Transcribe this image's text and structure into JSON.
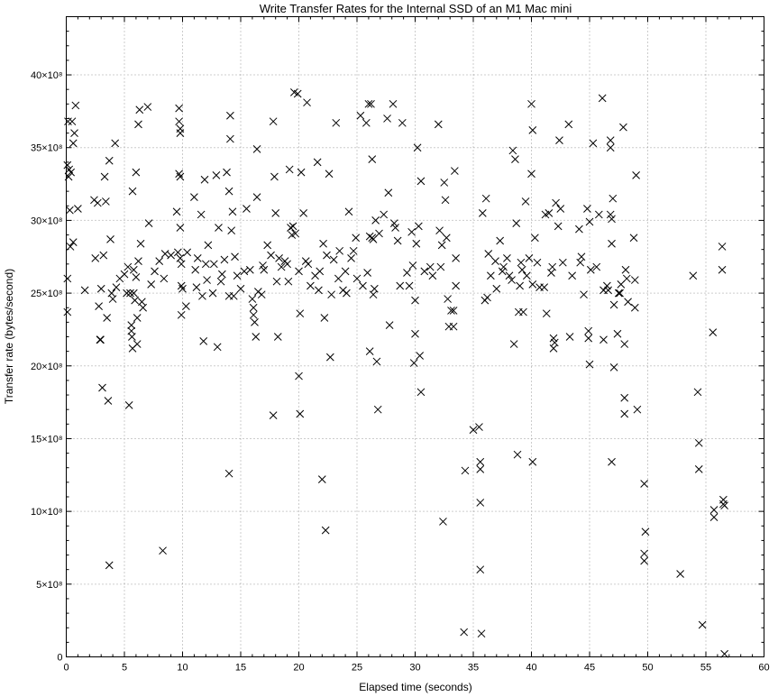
{
  "chart_data": {
    "type": "scatter",
    "title": "Write Transfer Rates for the Internal SSD of an M1 Mac mini",
    "xlabel": "Elapsed time (seconds)",
    "ylabel": "Transfer rate (bytes/second)",
    "xlim": [
      0,
      60
    ],
    "ylim": [
      0,
      4400000000.0
    ],
    "xticks": [
      0,
      5,
      10,
      15,
      20,
      25,
      30,
      35,
      40,
      45,
      50,
      55,
      60
    ],
    "yticks": [
      0,
      500000000,
      1000000000,
      1500000000,
      2000000000,
      2500000000,
      3000000000,
      3500000000,
      4000000000
    ],
    "ytick_labels": [
      "0",
      "5×10⁸",
      "10×10⁸",
      "15×10⁸",
      "20×10⁸",
      "25×10⁸",
      "30×10⁸",
      "35×10⁸",
      "40×10⁸"
    ],
    "grid": true,
    "marker": "x",
    "legend": "none",
    "points": [
      [
        0.1,
        3380000000.0
      ],
      [
        0.15,
        3680000000.0
      ],
      [
        0.2,
        3300000000.0
      ],
      [
        0.25,
        3350000000.0
      ],
      [
        0.3,
        3070000000.0
      ],
      [
        0.35,
        2820000000.0
      ],
      [
        0.1,
        2600000000.0
      ],
      [
        0.1,
        2370000000.0
      ],
      [
        0.4,
        3330000000.0
      ],
      [
        0.5,
        3680000000.0
      ],
      [
        0.6,
        3530000000.0
      ],
      [
        0.7,
        3600000000.0
      ],
      [
        0.8,
        3790000000.0
      ],
      [
        0.6,
        2850000000.0
      ],
      [
        1.0,
        3080000000.0
      ],
      [
        1.6,
        2520000000.0
      ],
      [
        2.4,
        3140000000.0
      ],
      [
        2.5,
        2740000000.0
      ],
      [
        2.7,
        3120000000.0
      ],
      [
        2.8,
        2410000000.0
      ],
      [
        2.9,
        2180000000.0
      ],
      [
        2.95,
        2180000000.0
      ],
      [
        3.0,
        2530000000.0
      ],
      [
        3.1,
        1850000000.0
      ],
      [
        3.2,
        2760000000.0
      ],
      [
        3.3,
        3300000000.0
      ],
      [
        3.4,
        3130000000.0
      ],
      [
        3.5,
        2330000000.0
      ],
      [
        3.6,
        1760000000.0
      ],
      [
        3.7,
        630000000.0
      ],
      [
        3.7,
        3410000000.0
      ],
      [
        3.8,
        2870000000.0
      ],
      [
        3.9,
        2500000000.0
      ],
      [
        4.0,
        2460000000.0
      ],
      [
        4.2,
        3530000000.0
      ],
      [
        4.3,
        2540000000.0
      ],
      [
        4.6,
        2600000000.0
      ],
      [
        5.0,
        2630000000.0
      ],
      [
        5.2,
        2500000000.0
      ],
      [
        5.3,
        2680000000.0
      ],
      [
        5.4,
        1730000000.0
      ],
      [
        5.5,
        2500000000.0
      ],
      [
        5.6,
        2280000000.0
      ],
      [
        5.6,
        2240000000.0
      ],
      [
        5.65,
        2200000000.0
      ],
      [
        5.7,
        2120000000.0
      ],
      [
        5.7,
        3200000000.0
      ],
      [
        5.8,
        2660000000.0
      ],
      [
        5.8,
        2500000000.0
      ],
      [
        5.9,
        2450000000.0
      ],
      [
        6.0,
        2610000000.0
      ],
      [
        6.0,
        3330000000.0
      ],
      [
        6.1,
        2150000000.0
      ],
      [
        6.1,
        2330000000.0
      ],
      [
        6.2,
        2720000000.0
      ],
      [
        6.2,
        3660000000.0
      ],
      [
        6.3,
        3760000000.0
      ],
      [
        6.4,
        2840000000.0
      ],
      [
        6.5,
        2440000000.0
      ],
      [
        6.6,
        2400000000.0
      ],
      [
        7.0,
        3780000000.0
      ],
      [
        7.1,
        2980000000.0
      ],
      [
        7.3,
        2560000000.0
      ],
      [
        7.6,
        2650000000.0
      ],
      [
        8.0,
        2720000000.0
      ],
      [
        8.3,
        730000000.0
      ],
      [
        8.4,
        2600000000.0
      ],
      [
        8.5,
        2770000000.0
      ],
      [
        9.0,
        2760000000.0
      ],
      [
        9.5,
        3060000000.0
      ],
      [
        9.6,
        2780000000.0
      ],
      [
        9.7,
        3770000000.0
      ],
      [
        9.7,
        3680000000.0
      ],
      [
        9.7,
        3320000000.0
      ],
      [
        9.8,
        3630000000.0
      ],
      [
        9.8,
        3600000000.0
      ],
      [
        9.8,
        3300000000.0
      ],
      [
        9.8,
        2950000000.0
      ],
      [
        9.8,
        2740000000.0
      ],
      [
        9.9,
        2700000000.0
      ],
      [
        9.9,
        2550000000.0
      ],
      [
        9.9,
        2350000000.0
      ],
      [
        10.0,
        2530000000.0
      ],
      [
        10.3,
        2410000000.0
      ],
      [
        10.4,
        2780000000.0
      ],
      [
        11.0,
        3160000000.0
      ],
      [
        11.1,
        2660000000.0
      ],
      [
        11.2,
        2540000000.0
      ],
      [
        11.3,
        2740000000.0
      ],
      [
        11.6,
        3040000000.0
      ],
      [
        11.7,
        2480000000.0
      ],
      [
        11.8,
        2170000000.0
      ],
      [
        11.9,
        3280000000.0
      ],
      [
        12.0,
        2700000000.0
      ],
      [
        12.1,
        2590000000.0
      ],
      [
        12.2,
        2830000000.0
      ],
      [
        12.6,
        2500000000.0
      ],
      [
        12.7,
        2700000000.0
      ],
      [
        12.9,
        3310000000.0
      ],
      [
        13.0,
        2130000000.0
      ],
      [
        13.1,
        2950000000.0
      ],
      [
        13.3,
        2580000000.0
      ],
      [
        13.4,
        2630000000.0
      ],
      [
        13.6,
        2730000000.0
      ],
      [
        13.8,
        3330000000.0
      ],
      [
        14.0,
        2480000000.0
      ],
      [
        14.0,
        3200000000.0
      ],
      [
        14.1,
        3720000000.0
      ],
      [
        14.1,
        3560000000.0
      ],
      [
        14.2,
        2930000000.0
      ],
      [
        14.3,
        3060000000.0
      ],
      [
        14.4,
        2480000000.0
      ],
      [
        14.5,
        2750000000.0
      ],
      [
        14.7,
        2620000000.0
      ],
      [
        15.0,
        2530000000.0
      ],
      [
        15.3,
        2650000000.0
      ],
      [
        15.5,
        3080000000.0
      ],
      [
        15.8,
        2660000000.0
      ],
      [
        16.0,
        2460000000.0
      ],
      [
        16.1,
        2400000000.0
      ],
      [
        16.1,
        2350000000.0
      ],
      [
        16.2,
        2300000000.0
      ],
      [
        16.3,
        2200000000.0
      ],
      [
        16.4,
        3490000000.0
      ],
      [
        16.4,
        3160000000.0
      ],
      [
        16.5,
        2510000000.0
      ],
      [
        16.8,
        2490000000.0
      ],
      [
        16.9,
        2690000000.0
      ],
      [
        14.0,
        1260000000.0
      ],
      [
        17.0,
        2660000000.0
      ],
      [
        17.3,
        2830000000.0
      ],
      [
        17.6,
        2760000000.0
      ],
      [
        17.8,
        3680000000.0
      ],
      [
        17.9,
        3300000000.0
      ],
      [
        18.0,
        3050000000.0
      ],
      [
        18.1,
        2580000000.0
      ],
      [
        18.2,
        2200000000.0
      ],
      [
        18.3,
        2740000000.0
      ],
      [
        18.5,
        2680000000.0
      ],
      [
        18.8,
        2720000000.0
      ],
      [
        19.0,
        2700000000.0
      ],
      [
        19.1,
        2580000000.0
      ],
      [
        19.2,
        3350000000.0
      ],
      [
        19.3,
        2950000000.0
      ],
      [
        19.4,
        2900000000.0
      ],
      [
        19.5,
        2960000000.0
      ],
      [
        19.6,
        3880000000.0
      ],
      [
        19.7,
        2910000000.0
      ],
      [
        19.9,
        3870000000.0
      ],
      [
        20.0,
        2650000000.0
      ],
      [
        20.0,
        1930000000.0
      ],
      [
        17.8,
        1660000000.0
      ],
      [
        20.1,
        1670000000.0
      ],
      [
        20.1,
        2360000000.0
      ],
      [
        20.2,
        3330000000.0
      ],
      [
        20.4,
        3050000000.0
      ],
      [
        20.6,
        2720000000.0
      ],
      [
        20.7,
        3810000000.0
      ],
      [
        20.8,
        2700000000.0
      ],
      [
        21.0,
        2550000000.0
      ],
      [
        21.4,
        2620000000.0
      ],
      [
        21.6,
        3400000000.0
      ],
      [
        21.7,
        2520000000.0
      ],
      [
        21.8,
        2650000000.0
      ],
      [
        22.0,
        1220000000.0
      ],
      [
        22.1,
        2840000000.0
      ],
      [
        22.2,
        2330000000.0
      ],
      [
        22.3,
        870000000.0
      ],
      [
        22.4,
        2760000000.0
      ],
      [
        22.6,
        3320000000.0
      ],
      [
        22.7,
        2060000000.0
      ],
      [
        22.8,
        2490000000.0
      ],
      [
        23.0,
        2730000000.0
      ],
      [
        23.2,
        3670000000.0
      ],
      [
        23.4,
        2600000000.0
      ],
      [
        23.5,
        2790000000.0
      ],
      [
        23.8,
        2520000000.0
      ],
      [
        24.0,
        2650000000.0
      ],
      [
        24.1,
        2500000000.0
      ],
      [
        24.3,
        3060000000.0
      ],
      [
        24.5,
        2740000000.0
      ],
      [
        24.7,
        2790000000.0
      ],
      [
        24.9,
        2880000000.0
      ],
      [
        25.0,
        2600000000.0
      ],
      [
        25.3,
        3720000000.0
      ],
      [
        25.5,
        2550000000.0
      ],
      [
        25.8,
        3670000000.0
      ],
      [
        25.9,
        2640000000.0
      ],
      [
        26.0,
        3800000000.0
      ],
      [
        26.1,
        2890000000.0
      ],
      [
        26.1,
        2100000000.0
      ],
      [
        26.2,
        3800000000.0
      ],
      [
        26.3,
        2880000000.0
      ],
      [
        26.4,
        2870000000.0
      ],
      [
        26.4,
        2490000000.0
      ],
      [
        26.5,
        2530000000.0
      ],
      [
        26.6,
        3000000000.0
      ],
      [
        26.7,
        2030000000.0
      ],
      [
        26.8,
        1700000000.0
      ],
      [
        26.9,
        2910000000.0
      ],
      [
        26.3,
        3420000000.0
      ],
      [
        27.3,
        3040000000.0
      ],
      [
        27.6,
        3700000000.0
      ],
      [
        27.7,
        3190000000.0
      ],
      [
        27.8,
        2280000000.0
      ],
      [
        28.1,
        3800000000.0
      ],
      [
        28.2,
        2980000000.0
      ],
      [
        28.3,
        2950000000.0
      ],
      [
        28.5,
        2860000000.0
      ],
      [
        28.7,
        2550000000.0
      ],
      [
        28.9,
        3670000000.0
      ],
      [
        29.3,
        2640000000.0
      ],
      [
        29.5,
        2550000000.0
      ],
      [
        29.7,
        2920000000.0
      ],
      [
        29.8,
        2690000000.0
      ],
      [
        29.9,
        2020000000.0
      ],
      [
        30.0,
        2220000000.0
      ],
      [
        30.0,
        2450000000.0
      ],
      [
        30.1,
        2840000000.0
      ],
      [
        30.2,
        3500000000.0
      ],
      [
        30.3,
        2960000000.0
      ],
      [
        30.4,
        2070000000.0
      ],
      [
        30.5,
        1820000000.0
      ],
      [
        30.5,
        3270000000.0
      ],
      [
        30.8,
        2650000000.0
      ],
      [
        31.3,
        2680000000.0
      ],
      [
        31.5,
        2620000000.0
      ],
      [
        32.0,
        3660000000.0
      ],
      [
        32.1,
        2930000000.0
      ],
      [
        32.2,
        2680000000.0
      ],
      [
        32.3,
        2830000000.0
      ],
      [
        32.4,
        930000000.0
      ],
      [
        32.5,
        3260000000.0
      ],
      [
        32.6,
        3140000000.0
      ],
      [
        32.7,
        2880000000.0
      ],
      [
        32.8,
        2460000000.0
      ],
      [
        32.9,
        2270000000.0
      ],
      [
        33.1,
        2380000000.0
      ],
      [
        33.3,
        2270000000.0
      ],
      [
        33.3,
        2380000000.0
      ],
      [
        33.4,
        3340000000.0
      ],
      [
        33.5,
        2550000000.0
      ],
      [
        33.5,
        2740000000.0
      ],
      [
        34.2,
        170000000.0
      ],
      [
        34.3,
        1280000000.0
      ],
      [
        35.0,
        1560000000.0
      ],
      [
        35.5,
        1580000000.0
      ],
      [
        35.6,
        1340000000.0
      ],
      [
        35.6,
        1290000000.0
      ],
      [
        35.6,
        1060000000.0
      ],
      [
        35.6,
        600000000.0
      ],
      [
        35.7,
        160000000.0
      ],
      [
        35.8,
        3050000000.0
      ],
      [
        36.0,
        2450000000.0
      ],
      [
        36.1,
        3150000000.0
      ],
      [
        36.2,
        2470000000.0
      ],
      [
        36.3,
        2770000000.0
      ],
      [
        36.5,
        2620000000.0
      ],
      [
        36.9,
        2720000000.0
      ],
      [
        37.0,
        2530000000.0
      ],
      [
        37.3,
        2860000000.0
      ],
      [
        37.5,
        2650000000.0
      ],
      [
        37.6,
        2680000000.0
      ],
      [
        37.9,
        2740000000.0
      ],
      [
        38.1,
        2620000000.0
      ],
      [
        38.3,
        2590000000.0
      ],
      [
        38.4,
        3480000000.0
      ],
      [
        38.5,
        2150000000.0
      ],
      [
        38.6,
        3420000000.0
      ],
      [
        38.7,
        2980000000.0
      ],
      [
        38.8,
        1390000000.0
      ],
      [
        38.9,
        2370000000.0
      ],
      [
        39.0,
        2550000000.0
      ],
      [
        39.1,
        2710000000.0
      ],
      [
        39.2,
        2660000000.0
      ],
      [
        39.3,
        2370000000.0
      ],
      [
        39.5,
        3130000000.0
      ],
      [
        39.6,
        2620000000.0
      ],
      [
        39.8,
        2740000000.0
      ],
      [
        40.0,
        3800000000.0
      ],
      [
        40.0,
        3320000000.0
      ],
      [
        40.1,
        3620000000.0
      ],
      [
        40.1,
        2560000000.0
      ],
      [
        40.1,
        1340000000.0
      ],
      [
        40.3,
        2880000000.0
      ],
      [
        40.5,
        2710000000.0
      ],
      [
        40.7,
        2540000000.0
      ],
      [
        41.1,
        2540000000.0
      ],
      [
        41.2,
        3040000000.0
      ],
      [
        41.3,
        2360000000.0
      ],
      [
        41.5,
        3050000000.0
      ],
      [
        41.7,
        2640000000.0
      ],
      [
        41.8,
        2680000000.0
      ],
      [
        41.9,
        2190000000.0
      ],
      [
        41.9,
        2120000000.0
      ],
      [
        42.0,
        2160000000.0
      ],
      [
        42.1,
        3120000000.0
      ],
      [
        42.3,
        2960000000.0
      ],
      [
        42.4,
        3550000000.0
      ],
      [
        42.5,
        3080000000.0
      ],
      [
        42.7,
        2710000000.0
      ],
      [
        43.2,
        3660000000.0
      ],
      [
        43.3,
        2200000000.0
      ],
      [
        43.5,
        2620000000.0
      ],
      [
        44.1,
        2940000000.0
      ],
      [
        44.2,
        2710000000.0
      ],
      [
        44.3,
        2750000000.0
      ],
      [
        44.5,
        2490000000.0
      ],
      [
        44.8,
        3080000000.0
      ],
      [
        44.9,
        2240000000.0
      ],
      [
        44.9,
        2190000000.0
      ],
      [
        45.0,
        2010000000.0
      ],
      [
        45.0,
        2990000000.0
      ],
      [
        45.1,
        2660000000.0
      ],
      [
        45.3,
        3530000000.0
      ],
      [
        45.6,
        2680000000.0
      ],
      [
        45.8,
        3040000000.0
      ],
      [
        46.1,
        3840000000.0
      ],
      [
        46.2,
        2520000000.0
      ],
      [
        46.2,
        2180000000.0
      ],
      [
        46.5,
        2550000000.0
      ],
      [
        46.6,
        2520000000.0
      ],
      [
        46.8,
        3550000000.0
      ],
      [
        46.8,
        3500000000.0
      ],
      [
        46.8,
        3040000000.0
      ],
      [
        46.9,
        3010000000.0
      ],
      [
        46.9,
        2840000000.0
      ],
      [
        46.9,
        1340000000.0
      ],
      [
        47.0,
        3150000000.0
      ],
      [
        47.1,
        1990000000.0
      ],
      [
        47.1,
        2420000000.0
      ],
      [
        47.4,
        2220000000.0
      ],
      [
        47.5,
        2500000000.0
      ],
      [
        47.6,
        2500000000.0
      ],
      [
        47.7,
        2560000000.0
      ],
      [
        47.9,
        3640000000.0
      ],
      [
        48.0,
        2150000000.0
      ],
      [
        48.0,
        1780000000.0
      ],
      [
        48.0,
        1670000000.0
      ],
      [
        48.2,
        2600000000.0
      ],
      [
        48.3,
        2440000000.0
      ],
      [
        48.1,
        2660000000.0
      ],
      [
        48.8,
        2880000000.0
      ],
      [
        48.9,
        2400000000.0
      ],
      [
        48.9,
        2590000000.0
      ],
      [
        49.0,
        3310000000.0
      ],
      [
        49.1,
        1700000000.0
      ],
      [
        49.7,
        1190000000.0
      ],
      [
        49.8,
        860000000.0
      ],
      [
        49.7,
        710000000.0
      ],
      [
        49.7,
        660000000.0
      ],
      [
        52.8,
        570000000.0
      ],
      [
        53.9,
        2620000000.0
      ],
      [
        54.3,
        1820000000.0
      ],
      [
        54.4,
        1470000000.0
      ],
      [
        54.4,
        1290000000.0
      ],
      [
        54.7,
        220000000.0
      ],
      [
        55.6,
        2230000000.0
      ],
      [
        55.7,
        1010000000.0
      ],
      [
        55.7,
        960000000.0
      ],
      [
        56.4,
        2820000000.0
      ],
      [
        56.4,
        2660000000.0
      ],
      [
        56.5,
        1080000000.0
      ],
      [
        56.5,
        1050000000.0
      ],
      [
        56.6,
        1040000000.0
      ],
      [
        56.6,
        20000000.0
      ]
    ]
  }
}
